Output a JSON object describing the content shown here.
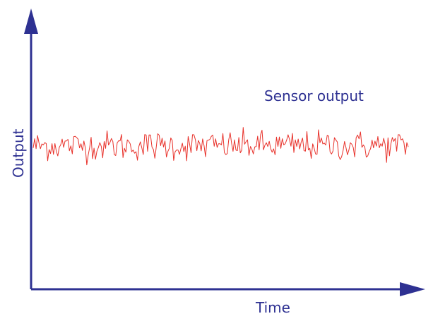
{
  "chart_data": {
    "type": "line",
    "title": "",
    "xlabel": "Time",
    "ylabel": "Output",
    "annotations": [
      {
        "text": "Sensor output"
      }
    ],
    "axes": {
      "tick_labels": false,
      "grid": false,
      "arrowheads": true
    },
    "series": [
      {
        "name": "Sensor output",
        "color": "#e8312a",
        "description_level": "constant mean with random noise",
        "x_range": [
          0,
          1
        ],
        "x_count": 260,
        "y_mean": 0.55,
        "y_amplitude": 0.08
      }
    ],
    "colors": {
      "axis": "#2e3192",
      "signal": "#e8312a",
      "text": "#2e3192"
    }
  }
}
